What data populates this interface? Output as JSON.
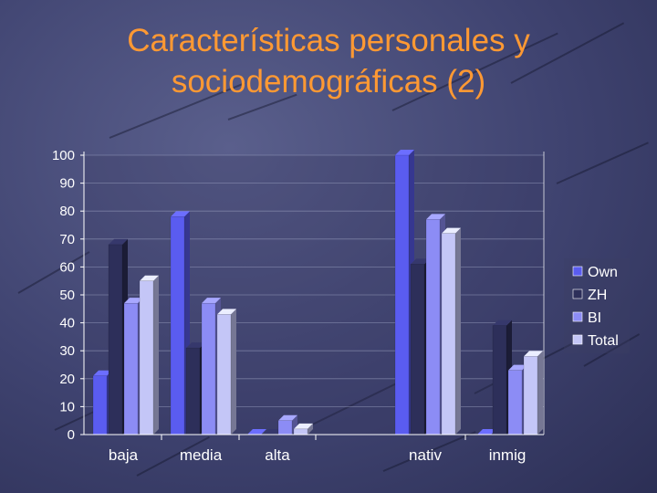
{
  "slide": {
    "title_line1": "Características personales y",
    "title_line2": "sociodemográficas (2)"
  },
  "colors": {
    "title": "#ff9933",
    "background": "#3f4370"
  },
  "chart_data": {
    "type": "bar",
    "categories": [
      "baja",
      "media",
      "alta",
      "nativ",
      "inmig"
    ],
    "ylim": [
      0,
      100
    ],
    "yticks": [
      0,
      10,
      20,
      30,
      40,
      50,
      60,
      70,
      80,
      90,
      100
    ],
    "grid": true,
    "legend_position": "right",
    "series": [
      {
        "name": "Own",
        "values": [
          21,
          78,
          0,
          100,
          0
        ],
        "color": "#5a5cf0"
      },
      {
        "name": "ZH",
        "values": [
          68,
          31,
          0,
          61,
          39
        ],
        "color": "#2d2f5a"
      },
      {
        "name": "BI",
        "values": [
          47,
          47,
          5,
          77,
          23
        ],
        "color": "#8c8cf5"
      },
      {
        "name": "Total",
        "values": [
          55,
          43,
          2,
          72,
          28
        ],
        "color": "#c4c6f7"
      }
    ]
  }
}
